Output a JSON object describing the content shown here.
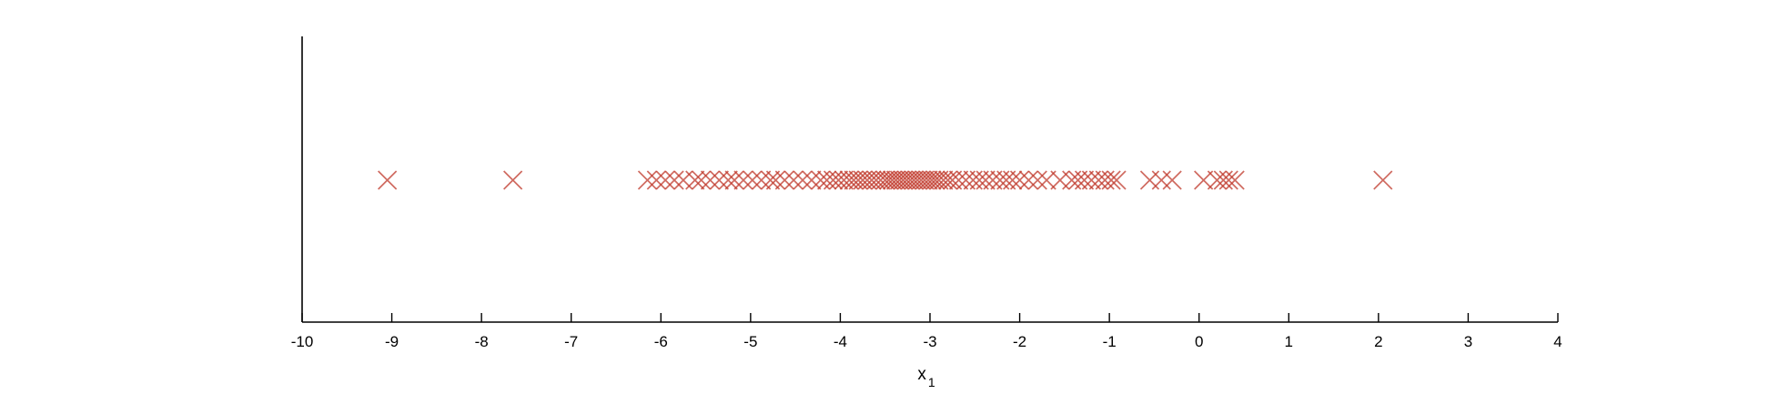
{
  "chart_data": {
    "type": "scatter",
    "title": "",
    "xlabel": "x",
    "xlabel_subscript": "1",
    "ylabel": "",
    "xlim": [
      -10,
      4
    ],
    "xticks": [
      -10,
      -9,
      -8,
      -7,
      -6,
      -5,
      -4,
      -3,
      -2,
      -1,
      0,
      1,
      2,
      3,
      4
    ],
    "grid": false,
    "legend": "none",
    "marker": "x",
    "marker_color": "#c0392b",
    "series": [
      {
        "x": [
          -9.05,
          -7.65,
          -6.15,
          -6.05,
          -5.95,
          -5.85,
          -5.75,
          -5.62,
          -5.55,
          -5.45,
          -5.35,
          -5.25,
          -5.18,
          -5.08,
          -4.98,
          -4.88,
          -4.78,
          -4.72,
          -4.62,
          -4.52,
          -4.42,
          -4.32,
          -4.22,
          -4.15,
          -4.08,
          -4.02,
          -3.96,
          -3.9,
          -3.85,
          -3.8,
          -3.75,
          -3.7,
          -3.65,
          -3.6,
          -3.55,
          -3.5,
          -3.46,
          -3.42,
          -3.38,
          -3.34,
          -3.3,
          -3.26,
          -3.22,
          -3.18,
          -3.14,
          -3.1,
          -3.06,
          -3.02,
          -2.98,
          -2.94,
          -2.9,
          -2.85,
          -2.8,
          -2.75,
          -2.68,
          -2.6,
          -2.52,
          -2.45,
          -2.38,
          -2.3,
          -2.22,
          -2.15,
          -2.08,
          -2.0,
          -1.9,
          -1.8,
          -1.7,
          -1.55,
          -1.42,
          -1.35,
          -1.28,
          -1.2,
          -1.12,
          -1.05,
          -0.98,
          -0.92,
          -0.55,
          -0.42,
          -0.3,
          0.05,
          0.2,
          0.27,
          0.33,
          0.4,
          2.05
        ],
        "y": 0
      }
    ]
  }
}
